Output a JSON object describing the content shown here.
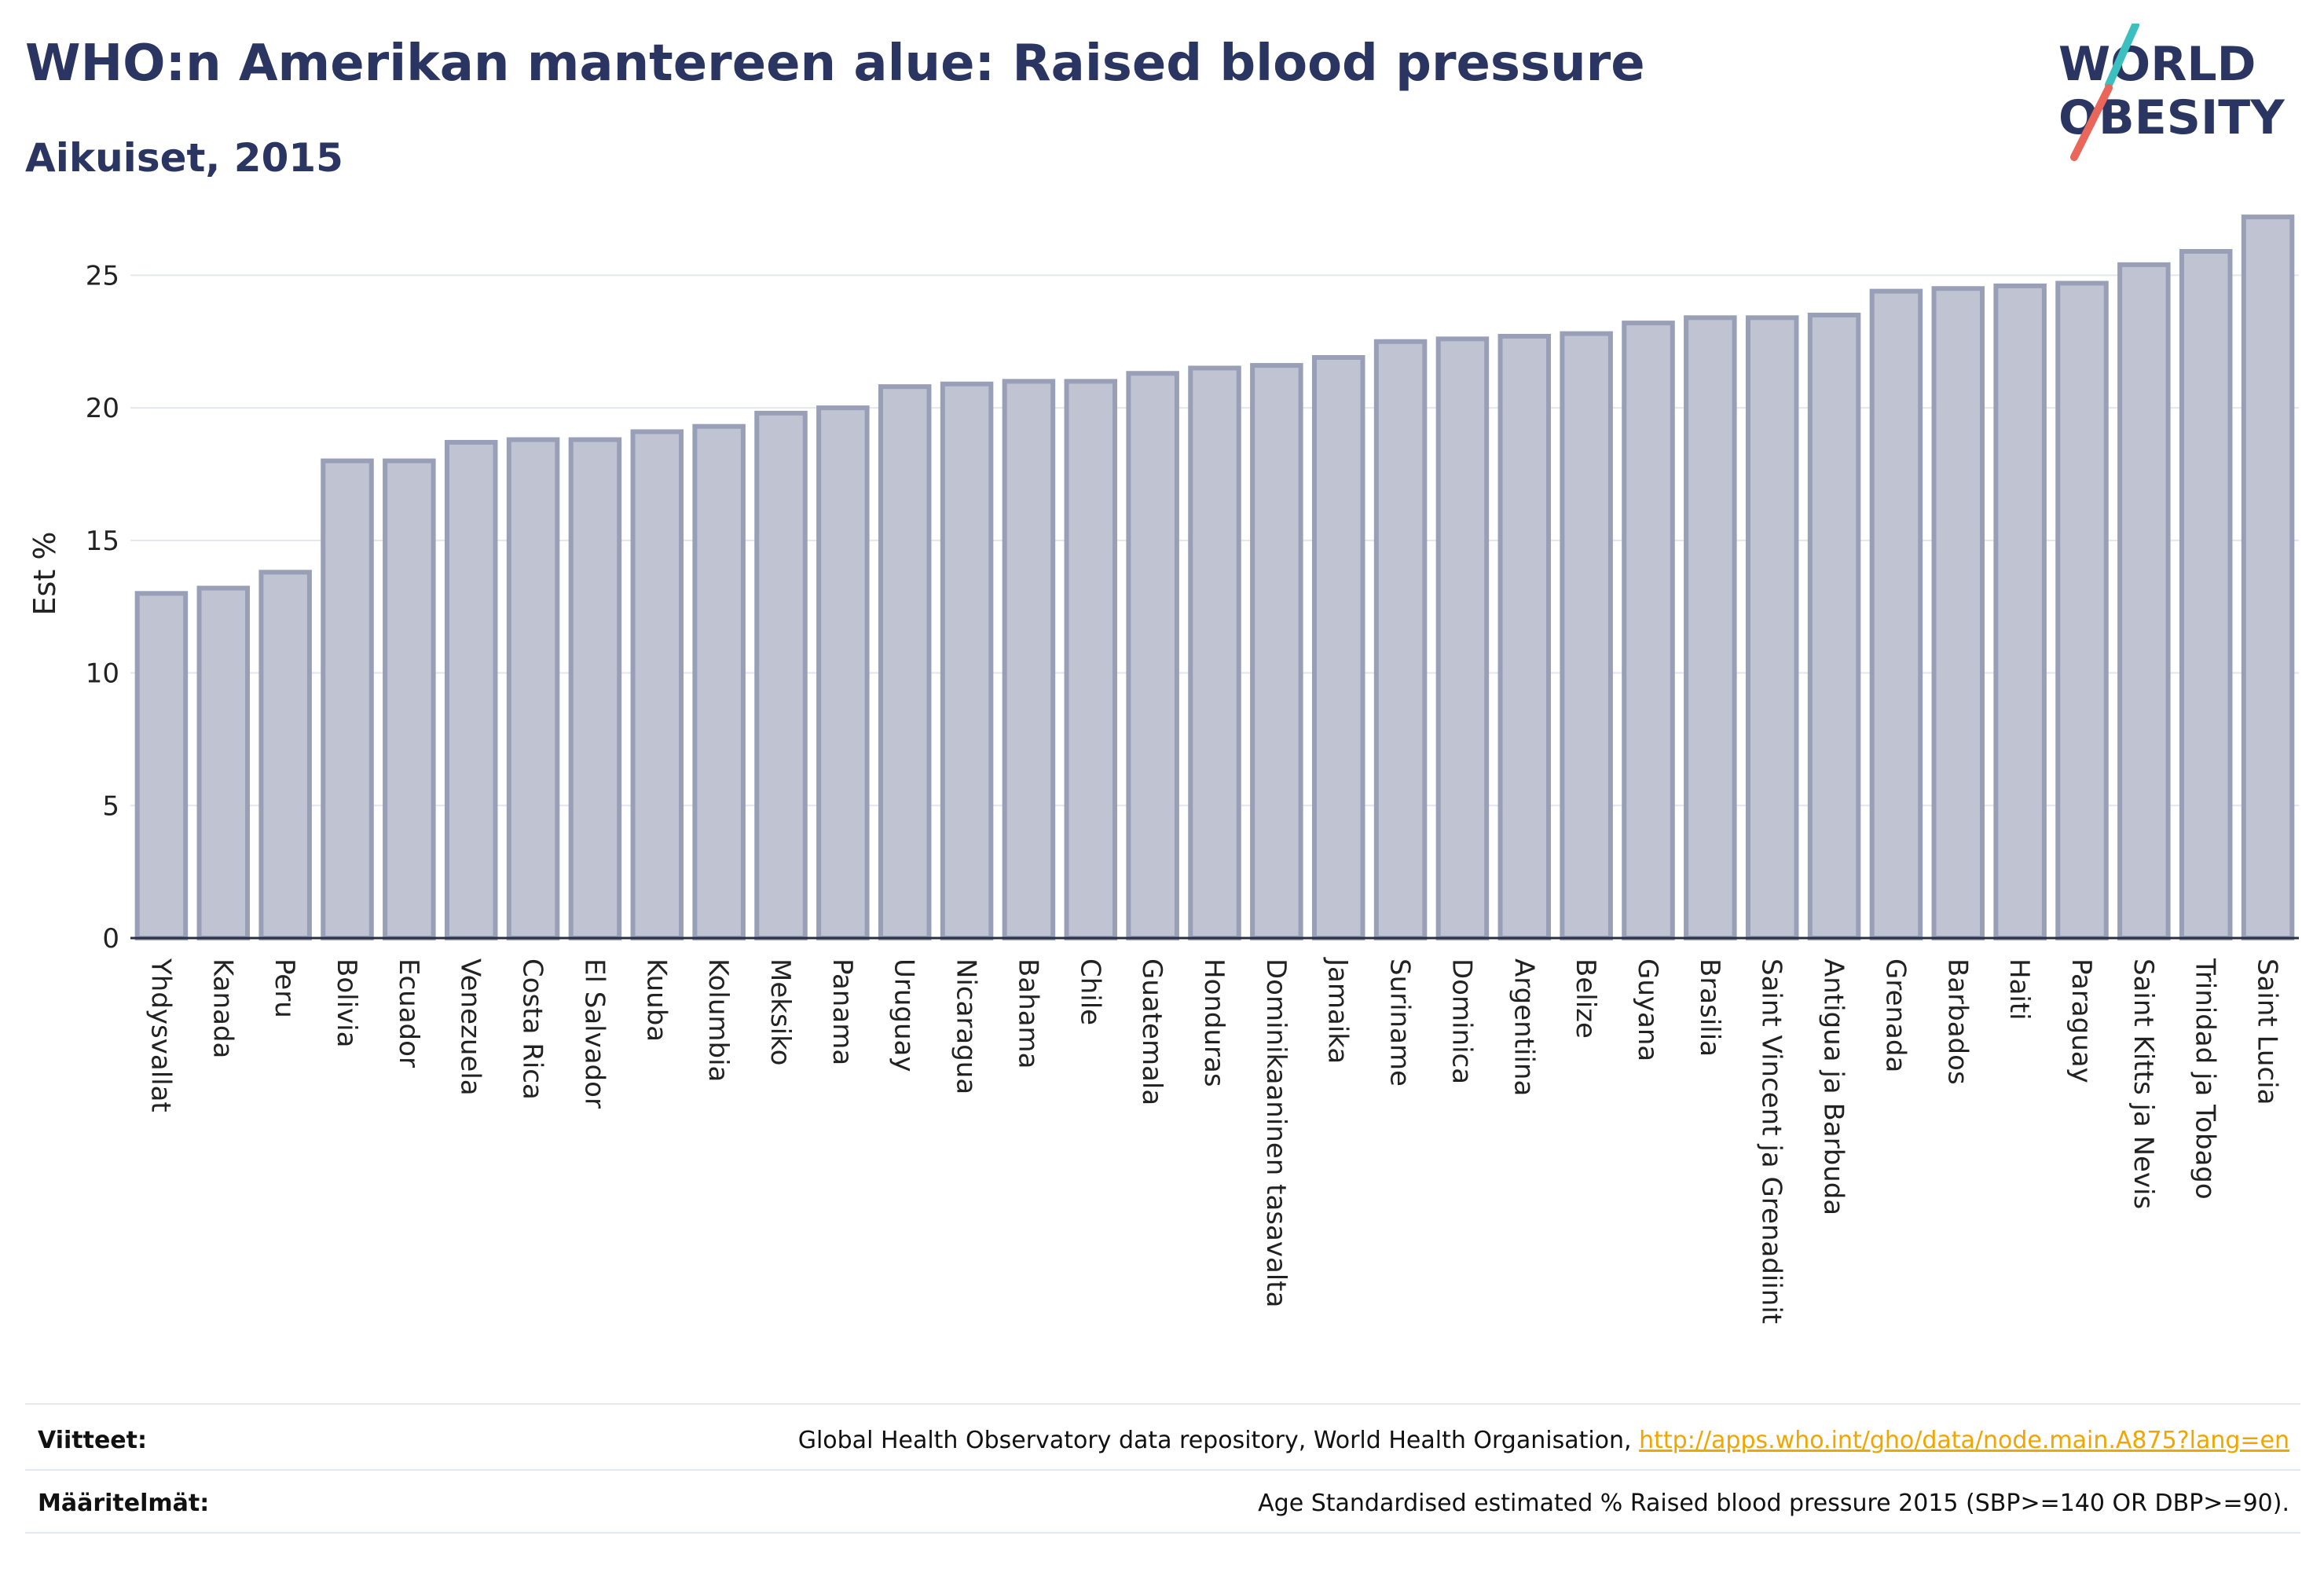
{
  "header": {
    "title": "WHO:n Amerikan mantereen alue: Raised blood pressure",
    "subtitle": "Aikuiset, 2015"
  },
  "logo": {
    "line1": "WORLD",
    "line2": "OBESITY",
    "accent_teal": "#3cbfbf",
    "accent_coral": "#e8665a",
    "text_color": "#2b3561"
  },
  "chart_data": {
    "type": "bar",
    "title": "WHO:n Amerikan mantereen alue: Raised blood pressure",
    "subtitle": "Aikuiset, 2015",
    "xlabel": "",
    "ylabel": "Est %",
    "ylim": [
      0,
      27.5
    ],
    "yticks": [
      0,
      5,
      10,
      15,
      20,
      25
    ],
    "grid": true,
    "bar_fill": "#c0c3d1",
    "bar_stroke": "#9a9fb8",
    "categories": [
      "Yhdysvallat",
      "Kanada",
      "Peru",
      "Bolivia",
      "Ecuador",
      "Venezuela",
      "Costa Rica",
      "El Salvador",
      "Kuuba",
      "Kolumbia",
      "Meksiko",
      "Panama",
      "Uruguay",
      "Nicaragua",
      "Bahama",
      "Chile",
      "Guatemala",
      "Honduras",
      "Dominikaaninen tasavalta",
      "Jamaika",
      "Suriname",
      "Dominica",
      "Argentiina",
      "Belize",
      "Guyana",
      "Brasilia",
      "Saint Vincent ja Grenadiinit",
      "Antigua ja Barbuda",
      "Grenada",
      "Barbados",
      "Haiti",
      "Paraguay",
      "Saint Kitts ja Nevis",
      "Trinidad ja Tobago",
      "Saint Lucia"
    ],
    "values": [
      13.0,
      13.2,
      13.8,
      18.0,
      18.0,
      18.7,
      18.8,
      18.8,
      19.1,
      19.3,
      19.8,
      20.0,
      20.8,
      20.9,
      21.0,
      21.0,
      21.3,
      21.5,
      21.6,
      21.9,
      22.5,
      22.6,
      22.7,
      22.8,
      23.2,
      23.4,
      23.4,
      23.5,
      24.4,
      24.5,
      24.6,
      24.7,
      25.4,
      25.9,
      27.2
    ]
  },
  "sources": {
    "refs_label": "Viitteet:",
    "refs_text": "Global Health Observatory data repository, World Health Organisation,",
    "refs_link": "http://apps.who.int/gho/data/node.main.A875?lang=en",
    "defs_label": "Määritelmät:",
    "defs_text": "Age Standardised estimated % Raised blood pressure 2015 (SBP>=140 OR DBP>=90)."
  }
}
